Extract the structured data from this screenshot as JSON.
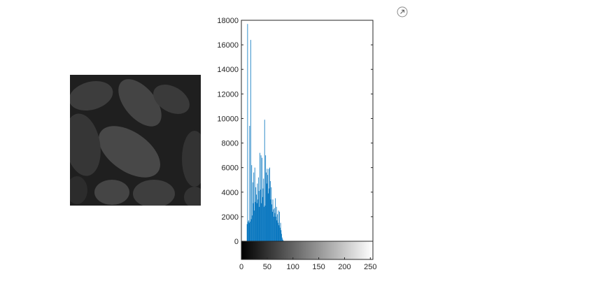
{
  "toolbar": {
    "expand_icon": "arrow-up-right-icon"
  },
  "image_panel": {
    "description_icon": "grayscale-pollen-image"
  },
  "colors": {
    "bars": "#0072bd",
    "axis": "#262626",
    "colorbar_start": "#000000",
    "colorbar_end": "#ffffff"
  },
  "chart_data": {
    "type": "bar",
    "title": "",
    "xlabel": "",
    "ylabel": "",
    "xlim": [
      0,
      255
    ],
    "ylim": [
      0,
      18000
    ],
    "yticks": [
      0,
      2000,
      4000,
      6000,
      8000,
      10000,
      12000,
      14000,
      16000,
      18000
    ],
    "xticks": [
      0,
      50,
      100,
      150,
      200,
      250
    ],
    "colorbar": "gray",
    "bins": [
      [
        11,
        1400
      ],
      [
        12,
        17700
      ],
      [
        13,
        1600
      ],
      [
        14,
        1700
      ],
      [
        15,
        1500
      ],
      [
        16,
        9400
      ],
      [
        17,
        1600
      ],
      [
        18,
        16400
      ],
      [
        19,
        1800
      ],
      [
        20,
        6200
      ],
      [
        21,
        2100
      ],
      [
        22,
        4800
      ],
      [
        23,
        3100
      ],
      [
        24,
        5600
      ],
      [
        25,
        2500
      ],
      [
        26,
        6000
      ],
      [
        27,
        3200
      ],
      [
        28,
        4400
      ],
      [
        29,
        3800
      ],
      [
        30,
        3100
      ],
      [
        31,
        4700
      ],
      [
        32,
        3400
      ],
      [
        33,
        5200
      ],
      [
        34,
        4100
      ],
      [
        35,
        2800
      ],
      [
        36,
        7200
      ],
      [
        37,
        4200
      ],
      [
        38,
        7000
      ],
      [
        39,
        3100
      ],
      [
        40,
        6800
      ],
      [
        41,
        3600
      ],
      [
        42,
        4300
      ],
      [
        43,
        5100
      ],
      [
        44,
        2800
      ],
      [
        45,
        9900
      ],
      [
        46,
        2900
      ],
      [
        47,
        7000
      ],
      [
        48,
        5600
      ],
      [
        49,
        4700
      ],
      [
        50,
        5900
      ],
      [
        51,
        5400
      ],
      [
        52,
        3900
      ],
      [
        53,
        5900
      ],
      [
        54,
        4300
      ],
      [
        55,
        6000
      ],
      [
        56,
        4900
      ],
      [
        57,
        3400
      ],
      [
        58,
        4400
      ],
      [
        59,
        3000
      ],
      [
        60,
        2400
      ],
      [
        61,
        3400
      ],
      [
        62,
        2600
      ],
      [
        63,
        2000
      ],
      [
        64,
        2700
      ],
      [
        65,
        2300
      ],
      [
        66,
        3500
      ],
      [
        67,
        2000
      ],
      [
        68,
        2800
      ],
      [
        69,
        1700
      ],
      [
        70,
        2200
      ],
      [
        71,
        1500
      ],
      [
        72,
        2500
      ],
      [
        73,
        1300
      ],
      [
        74,
        2400
      ],
      [
        75,
        1100
      ],
      [
        76,
        1500
      ],
      [
        77,
        900
      ],
      [
        78,
        600
      ],
      [
        79,
        300
      ],
      [
        80,
        150
      ],
      [
        81,
        80
      ]
    ]
  }
}
